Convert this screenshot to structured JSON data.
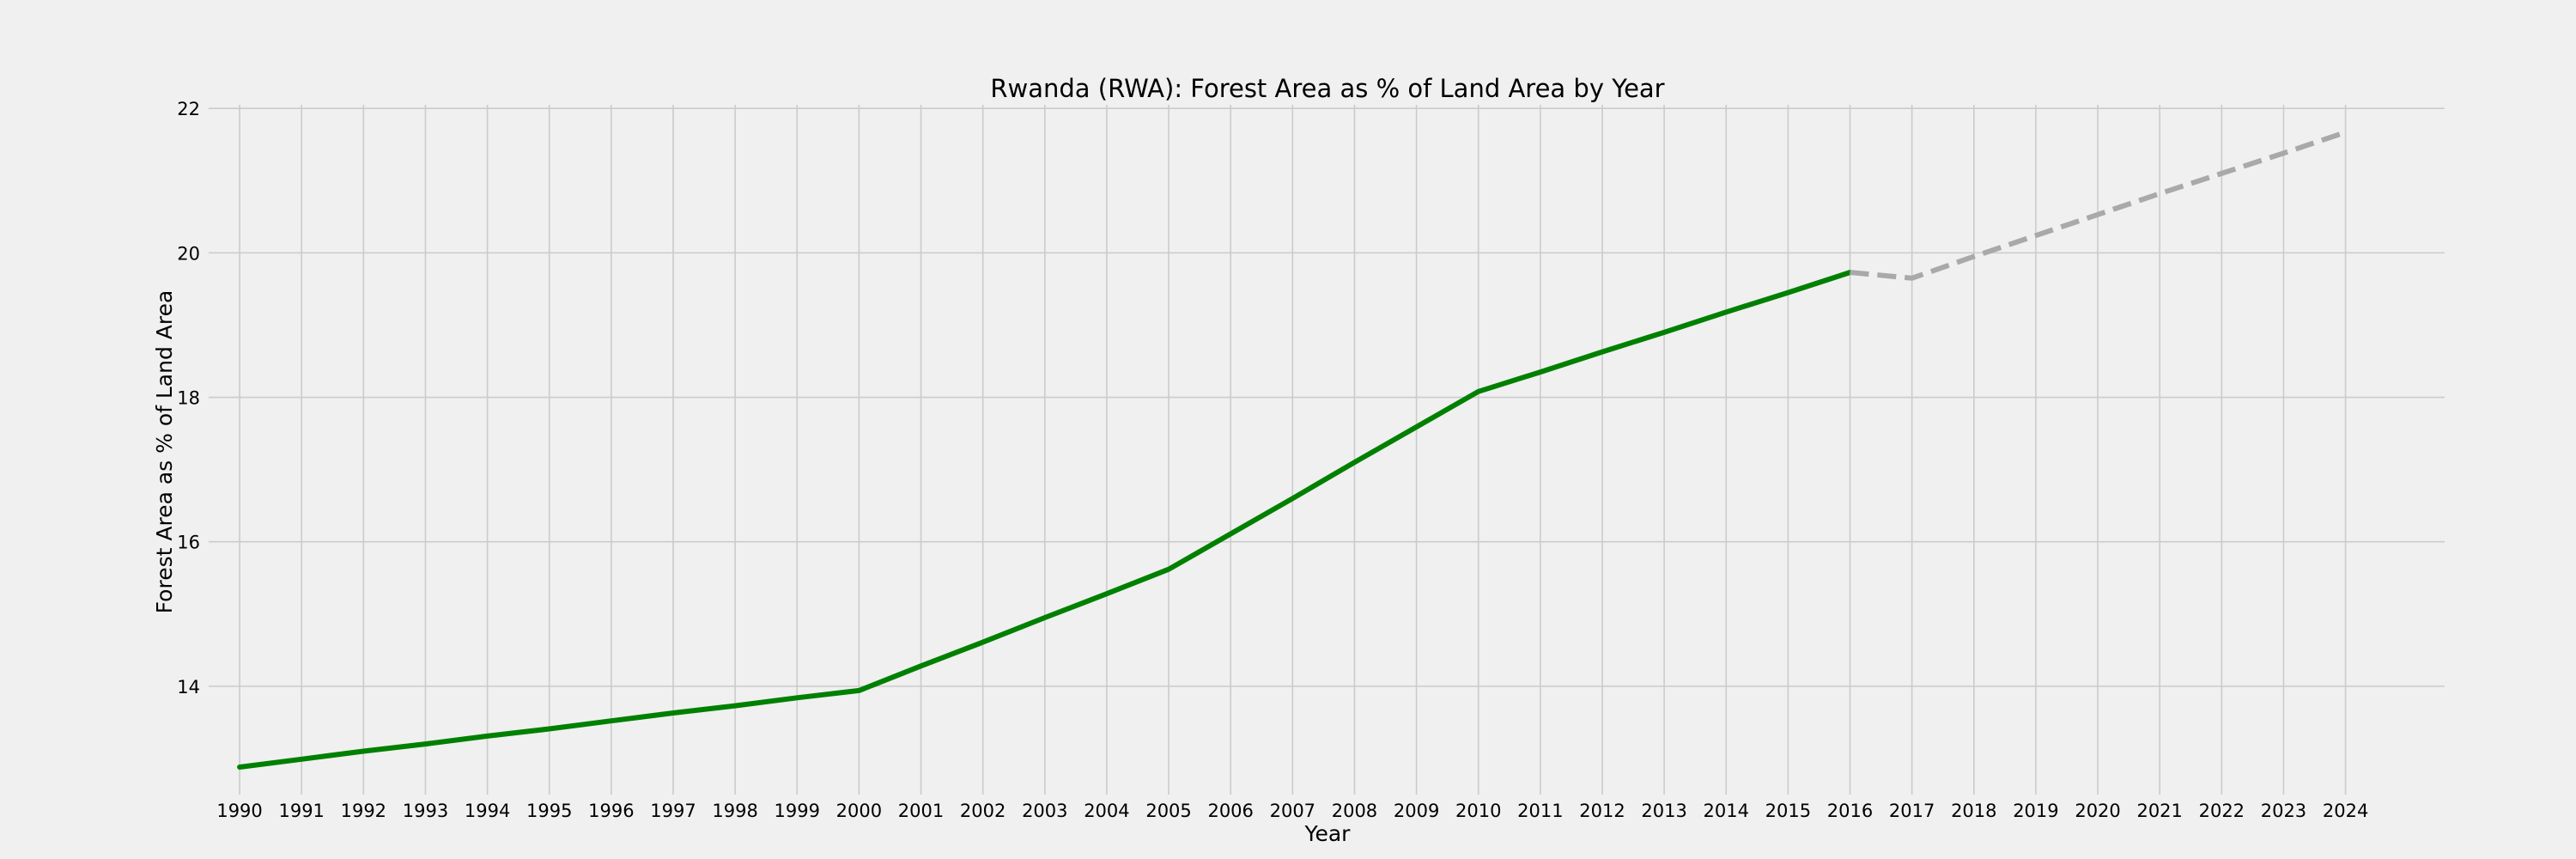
{
  "chart_data": {
    "type": "line",
    "title": "Rwanda (RWA): Forest Area as % of Land Area by Year",
    "xlabel": "Year",
    "ylabel": "Forest Area as % of Land Area",
    "x_ticks": [
      1990,
      1991,
      1992,
      1993,
      1994,
      1995,
      1996,
      1997,
      1998,
      1999,
      2000,
      2001,
      2002,
      2003,
      2004,
      2005,
      2006,
      2007,
      2008,
      2009,
      2010,
      2011,
      2012,
      2013,
      2014,
      2015,
      2016,
      2017,
      2018,
      2019,
      2020,
      2021,
      2022,
      2023,
      2024
    ],
    "y_ticks": [
      14,
      16,
      18,
      20,
      22
    ],
    "xlim": [
      1989.5,
      2025.6
    ],
    "ylim": [
      12.5,
      22.05
    ],
    "grid": true,
    "series": [
      {
        "style": "solid",
        "color": "#008000",
        "x": [
          1990,
          1991,
          1992,
          1993,
          1994,
          1995,
          1996,
          1997,
          1998,
          1999,
          2000,
          2001,
          2002,
          2003,
          2004,
          2005,
          2006,
          2007,
          2008,
          2009,
          2010,
          2011,
          2012,
          2013,
          2014,
          2015,
          2016
        ],
        "values": [
          12.88,
          12.99,
          13.1,
          13.2,
          13.31,
          13.41,
          13.52,
          13.63,
          13.73,
          13.84,
          13.94,
          14.28,
          14.61,
          14.95,
          15.28,
          15.62,
          16.11,
          16.6,
          17.1,
          17.59,
          18.08,
          18.35,
          18.63,
          18.9,
          19.18,
          19.45,
          19.73
        ]
      },
      {
        "style": "dashed",
        "color": "#a9a9a9",
        "x": [
          2016,
          2017,
          2018,
          2019,
          2020,
          2021,
          2022,
          2023,
          2024
        ],
        "values": [
          19.73,
          19.65,
          19.95,
          20.24,
          20.53,
          20.82,
          21.1,
          21.38,
          21.67
        ]
      }
    ]
  }
}
